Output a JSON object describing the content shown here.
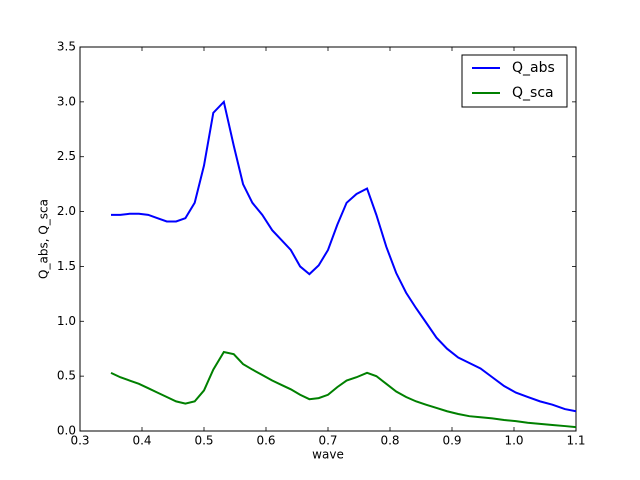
{
  "chart_data": {
    "type": "line",
    "xlabel": "wave",
    "ylabel": "Q_abs, Q_sca",
    "x": [
      0.35,
      0.365,
      0.38,
      0.395,
      0.41,
      0.425,
      0.44,
      0.455,
      0.47,
      0.485,
      0.5,
      0.515,
      0.532,
      0.548,
      0.563,
      0.578,
      0.594,
      0.61,
      0.625,
      0.64,
      0.655,
      0.67,
      0.685,
      0.7,
      0.715,
      0.73,
      0.746,
      0.763,
      0.778,
      0.794,
      0.81,
      0.826,
      0.842,
      0.858,
      0.875,
      0.892,
      0.91,
      0.928,
      0.946,
      0.965,
      0.984,
      1.003,
      1.022,
      1.042,
      1.062,
      1.082,
      1.1
    ],
    "series": [
      {
        "name": "Q_abs",
        "color": "#0000ff",
        "values": [
          1.97,
          1.97,
          1.98,
          1.98,
          1.97,
          1.94,
          1.91,
          1.91,
          1.94,
          2.08,
          2.42,
          2.9,
          3.0,
          2.6,
          2.25,
          2.08,
          1.97,
          1.83,
          1.74,
          1.65,
          1.5,
          1.43,
          1.51,
          1.65,
          1.88,
          2.08,
          2.16,
          2.21,
          1.97,
          1.68,
          1.44,
          1.26,
          1.12,
          0.99,
          0.85,
          0.75,
          0.67,
          0.62,
          0.57,
          0.49,
          0.41,
          0.35,
          0.31,
          0.27,
          0.24,
          0.2,
          0.18
        ]
      },
      {
        "name": "Q_sca",
        "color": "#008000",
        "values": [
          0.53,
          0.49,
          0.46,
          0.43,
          0.39,
          0.35,
          0.31,
          0.27,
          0.25,
          0.27,
          0.37,
          0.56,
          0.72,
          0.7,
          0.61,
          0.56,
          0.51,
          0.46,
          0.42,
          0.38,
          0.33,
          0.29,
          0.3,
          0.33,
          0.4,
          0.46,
          0.49,
          0.53,
          0.5,
          0.43,
          0.36,
          0.31,
          0.27,
          0.24,
          0.21,
          0.18,
          0.155,
          0.135,
          0.125,
          0.115,
          0.1,
          0.09,
          0.075,
          0.065,
          0.055,
          0.045,
          0.035
        ]
      }
    ],
    "xlim": [
      0.3,
      1.1
    ],
    "xticks": [
      0.3,
      0.4,
      0.5,
      0.6,
      0.7,
      0.8,
      0.9,
      {
        "value": 1,
        "label": "1.0"
      },
      1.1
    ],
    "ylim": [
      0,
      3.5
    ],
    "yticks": [
      {
        "value": 0,
        "label": "0.0"
      },
      0.5,
      {
        "value": 1,
        "label": "1.0"
      },
      1.5,
      {
        "value": 2,
        "label": "2.0"
      },
      2.5,
      {
        "value": 3,
        "label": "3.0"
      },
      3.5
    ],
    "legend": "upper right",
    "grid": false
  }
}
